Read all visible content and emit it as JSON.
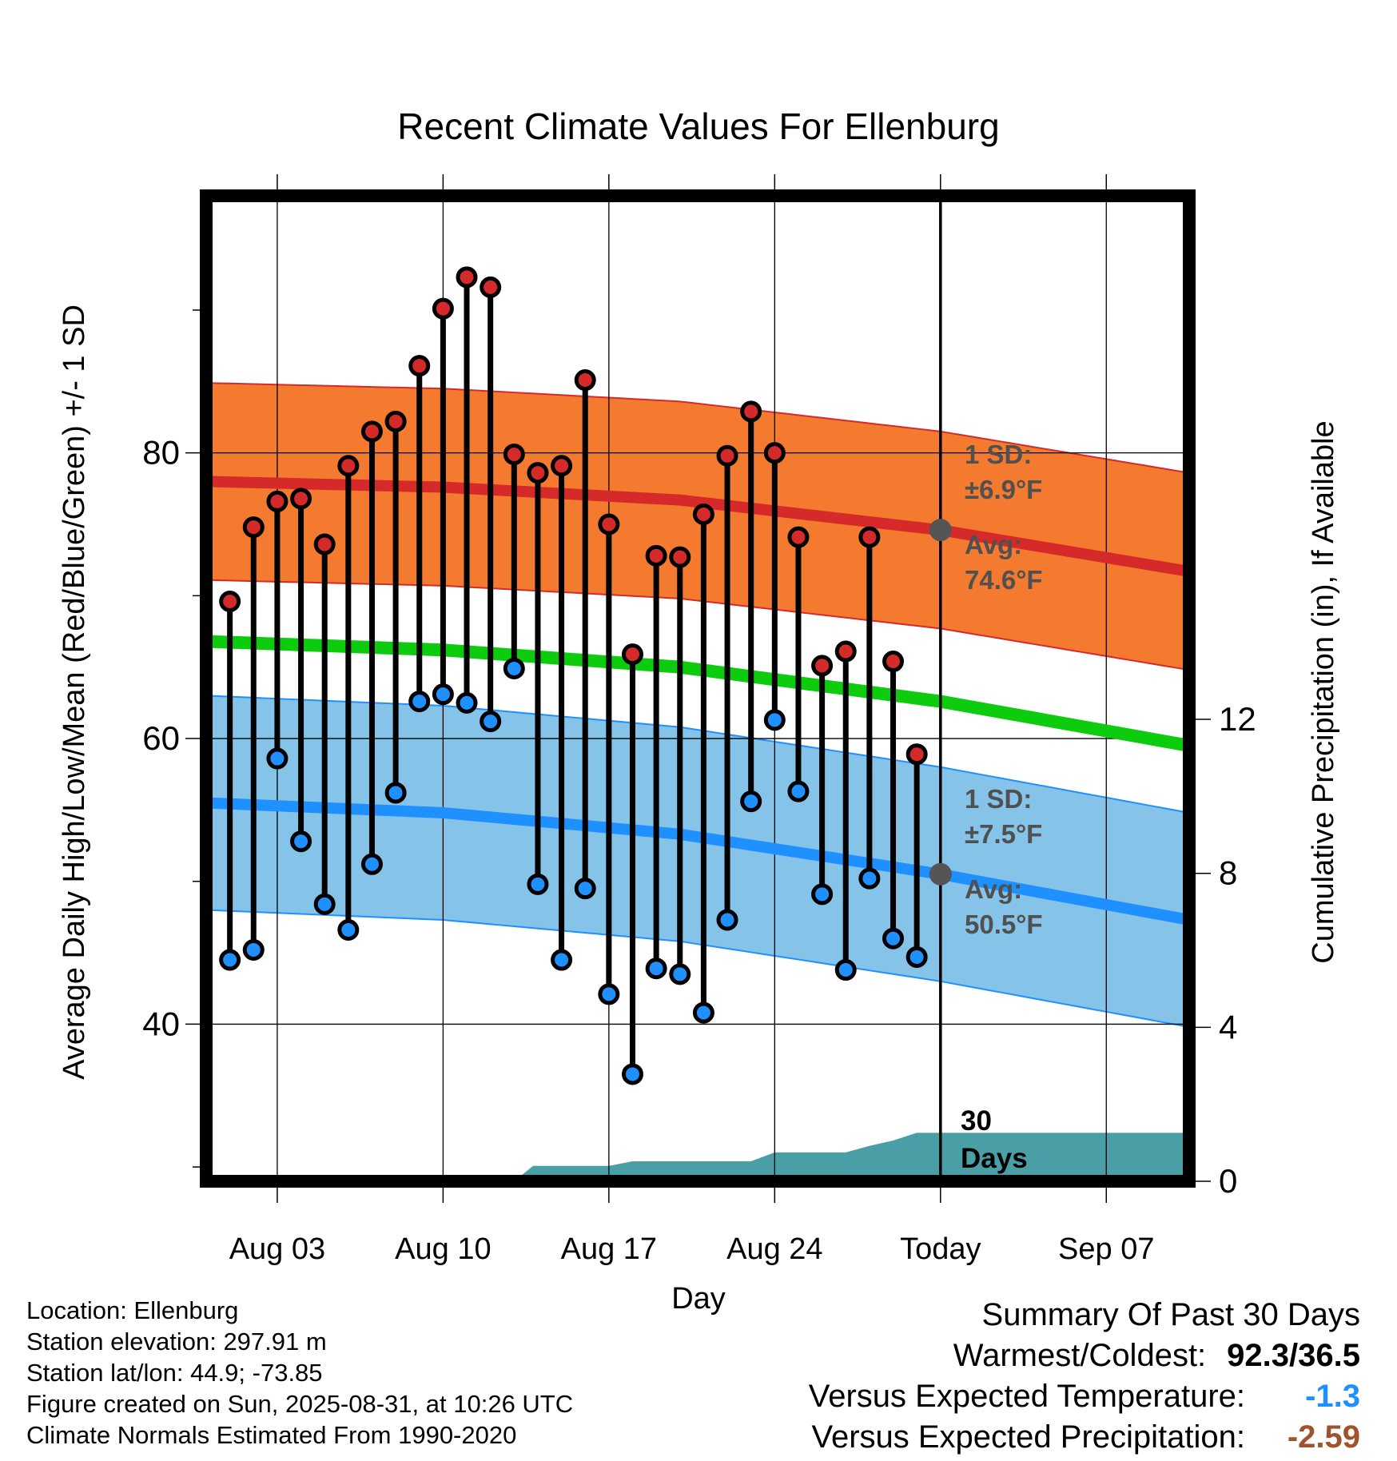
{
  "chart_data": {
    "type": "line",
    "title": "Recent Climate Values For Ellenburg",
    "xlabel": "Day",
    "ylabel_left": "Average Daily High/Low/Mean (Red/Blue/Green) +/- 1 SD",
    "ylabel_right": "Cumulative Precipitation (in), If Available",
    "x_tick_labels": [
      "Aug 03",
      "Aug 10",
      "Aug 17",
      "Aug 24",
      "Today",
      "Sep 07"
    ],
    "x_tick_days": [
      3,
      10,
      17,
      24,
      31,
      38
    ],
    "xlim_days": [
      0,
      41.5
    ],
    "ylim_left": [
      29,
      98
    ],
    "y_left_ticks": [
      40,
      60,
      80
    ],
    "y_left_minor_ticks": [
      30,
      50,
      70,
      90
    ],
    "ylim_right": [
      0,
      25.6
    ],
    "y_right_ticks": [
      0,
      4,
      8,
      12
    ],
    "today_day": 31,
    "observed_days": [
      1,
      2,
      3,
      4,
      5,
      6,
      7,
      8,
      9,
      10,
      11,
      12,
      13,
      14,
      15,
      16,
      17,
      18,
      19,
      20,
      21,
      22,
      23,
      24,
      25,
      26,
      27,
      28,
      29,
      30
    ],
    "daily_high": [
      69.6,
      74.8,
      76.6,
      76.8,
      73.6,
      79.1,
      81.5,
      82.2,
      86.1,
      90.1,
      92.3,
      91.6,
      79.9,
      78.6,
      79.1,
      85.1,
      75.0,
      65.9,
      72.8,
      72.7,
      75.7,
      79.8,
      82.9,
      80.0,
      74.1,
      65.1,
      66.1,
      74.1,
      65.4,
      58.9
    ],
    "daily_low": [
      44.5,
      45.2,
      58.6,
      52.8,
      48.4,
      46.6,
      51.2,
      56.2,
      62.6,
      63.1,
      62.5,
      61.2,
      64.9,
      49.8,
      44.5,
      49.5,
      42.1,
      36.5,
      43.9,
      43.5,
      40.8,
      47.3,
      55.6,
      61.3,
      56.3,
      49.1,
      43.8,
      50.2,
      46.0,
      44.7
    ],
    "normal_high": {
      "x": [
        0,
        10,
        20,
        31,
        41.5
      ],
      "values": [
        78.0,
        77.6,
        76.7,
        74.6,
        71.7
      ]
    },
    "normal_high_sd": "±6.9°F",
    "normal_low": {
      "x": [
        0,
        10,
        20,
        31,
        41.5
      ],
      "values": [
        55.5,
        54.8,
        53.3,
        50.5,
        47.3
      ]
    },
    "normal_low_sd": "±7.5°F",
    "normal_mean": {
      "x": [
        0,
        10,
        20,
        31,
        41.5
      ],
      "values": [
        66.8,
        66.2,
        65.0,
        62.6,
        59.5
      ]
    },
    "precip": {
      "x": [
        0,
        13,
        13.8,
        17,
        18,
        23,
        24,
        27,
        28,
        29,
        30,
        31,
        41.5
      ],
      "values": [
        0,
        0,
        0.4,
        0.4,
        0.52,
        0.52,
        0.75,
        0.75,
        0.92,
        1.06,
        1.26,
        1.26,
        1.26
      ]
    },
    "annotations": {
      "high_sd_label": "1 SD:",
      "high_sd_value": "±6.9°F",
      "high_avg_label": "Avg:",
      "high_avg_value": "74.6°F",
      "low_sd_label": "1 SD:",
      "low_sd_value": "±7.5°F",
      "low_avg_label": "Avg:",
      "low_avg_value": "50.5°F",
      "days_line1": "30",
      "days_line2": "Days"
    },
    "colors": {
      "high_band": "#f47a2f",
      "high_line": "#d62a2a",
      "low_band": "#86c3e8",
      "low_line": "#1e90ff",
      "mean_line": "#0dcc0d",
      "precip": "#4a9ea6",
      "high_dot": "#d42a2a",
      "low_dot": "#1e90ff",
      "annotation": "#505050"
    }
  },
  "info": {
    "location": "Location: Ellenburg",
    "elevation": "Station elevation: 297.91 m",
    "latlon": "Station lat/lon: 44.9; -73.85",
    "created": "Figure created on Sun, 2025-08-31, at 10:26 UTC",
    "normals": "Climate Normals Estimated From 1990-2020"
  },
  "summary": {
    "title": "Summary Of Past 30 Days",
    "warm_cold_label": "Warmest/Coldest:",
    "warm_cold_value": "92.3/36.5",
    "temp_label": "Versus Expected Temperature:",
    "temp_value": "-1.3",
    "temp_color": "#1e90ff",
    "precip_label": "Versus Expected Precipitation:",
    "precip_value": "-2.59",
    "precip_color": "#a0522d"
  }
}
